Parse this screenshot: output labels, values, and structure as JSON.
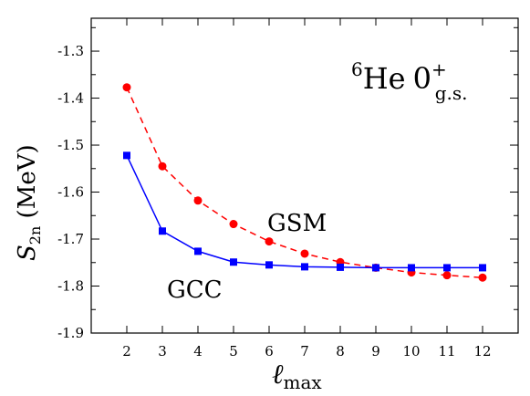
{
  "chart_data": {
    "type": "line",
    "x": [
      2,
      3,
      4,
      5,
      6,
      7,
      8,
      9,
      10,
      11,
      12
    ],
    "series": [
      {
        "name": "GSM",
        "values": [
          -1.377,
          -1.545,
          -1.618,
          -1.668,
          -1.705,
          -1.731,
          -1.749,
          -1.761,
          -1.771,
          -1.777,
          -1.782
        ],
        "color": "#ff0000",
        "marker": "circle",
        "linestyle": "dashed"
      },
      {
        "name": "GCC",
        "values": [
          -1.522,
          -1.683,
          -1.726,
          -1.749,
          -1.755,
          -1.759,
          -1.76,
          -1.761,
          -1.761,
          -1.761,
          -1.761
        ],
        "color": "#0000ff",
        "marker": "square",
        "linestyle": "solid"
      }
    ],
    "xlim": [
      1,
      13
    ],
    "ylim": [
      -1.9,
      -1.23
    ],
    "xticks": [
      "2",
      "3",
      "4",
      "5",
      "6",
      "7",
      "8",
      "9",
      "10",
      "11",
      "12"
    ],
    "yticks": [
      "-1.3",
      "-1.4",
      "-1.5",
      "-1.6",
      "-1.7",
      "-1.8",
      "-1.9"
    ],
    "ytick_values": [
      -1.3,
      -1.4,
      -1.5,
      -1.6,
      -1.7,
      -1.8,
      -1.9
    ],
    "xlabel": {
      "main": "ℓ",
      "sub": "max"
    },
    "ylabel": {
      "main": "S",
      "sub": "2n",
      "rest": " (MeV)"
    },
    "annotation": {
      "sup_mass": "6",
      "element": "He",
      "state": "0",
      "state_sup": "+",
      "state_sub": "g.s."
    },
    "grid": false
  }
}
